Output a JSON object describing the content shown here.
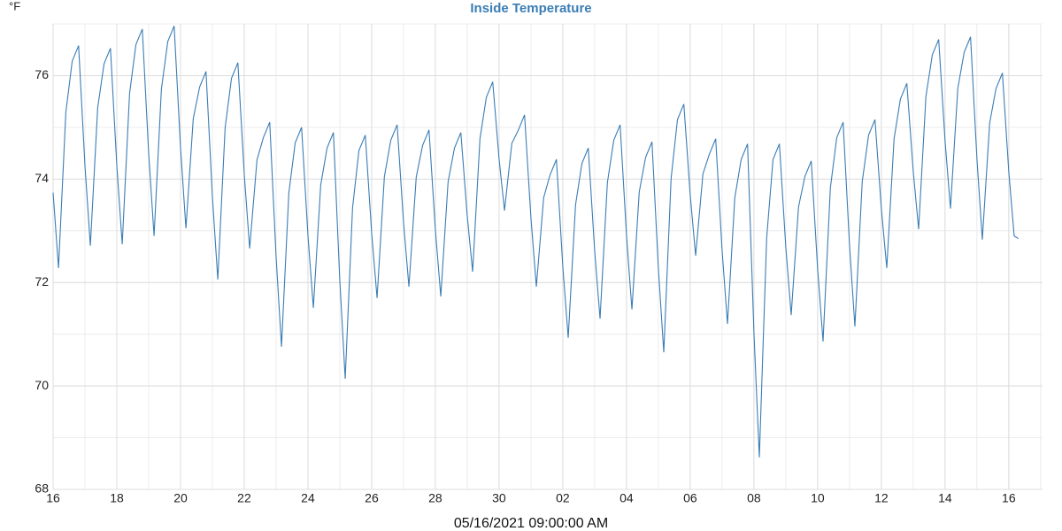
{
  "chart_data": {
    "type": "line",
    "title": "Inside Temperature",
    "y_axis_label": "°F",
    "x_axis_label": "05/16/2021 09:00:00 AM",
    "xlim": [
      0,
      31.06
    ],
    "xticks": [
      {
        "value": 0,
        "label": "16"
      },
      {
        "value": 2,
        "label": "18"
      },
      {
        "value": 4,
        "label": "20"
      },
      {
        "value": 6,
        "label": "22"
      },
      {
        "value": 8,
        "label": "24"
      },
      {
        "value": 10,
        "label": "26"
      },
      {
        "value": 12,
        "label": "28"
      },
      {
        "value": 14,
        "label": "30"
      },
      {
        "value": 16,
        "label": "02"
      },
      {
        "value": 18,
        "label": "04"
      },
      {
        "value": 20,
        "label": "06"
      },
      {
        "value": 22,
        "label": "08"
      },
      {
        "value": 24,
        "label": "10"
      },
      {
        "value": 26,
        "label": "12"
      },
      {
        "value": 28,
        "label": "14"
      },
      {
        "value": 30,
        "label": "16"
      }
    ],
    "ylim": [
      68,
      77
    ],
    "yticks": [
      68,
      70,
      72,
      74,
      76
    ],
    "grid": true,
    "x": [
      0,
      0.17,
      0.4,
      0.6,
      0.8,
      1,
      1.17,
      1.4,
      1.6,
      1.8,
      2,
      2.17,
      2.4,
      2.6,
      2.8,
      3,
      3.17,
      3.4,
      3.6,
      3.8,
      4,
      4.17,
      4.4,
      4.6,
      4.8,
      5,
      5.17,
      5.4,
      5.6,
      5.8,
      6,
      6.17,
      6.4,
      6.6,
      6.8,
      7,
      7.17,
      7.4,
      7.6,
      7.8,
      8,
      8.17,
      8.4,
      8.6,
      8.8,
      9,
      9.17,
      9.4,
      9.6,
      9.8,
      10,
      10.17,
      10.4,
      10.6,
      10.8,
      11,
      11.17,
      11.4,
      11.6,
      11.8,
      12,
      12.17,
      12.4,
      12.6,
      12.8,
      13,
      13.17,
      13.4,
      13.6,
      13.8,
      14,
      14.17,
      14.4,
      14.6,
      14.8,
      15,
      15.17,
      15.4,
      15.6,
      15.8,
      16,
      16.17,
      16.4,
      16.6,
      16.8,
      17,
      17.17,
      17.4,
      17.6,
      17.8,
      18,
      18.17,
      18.4,
      18.6,
      18.8,
      19,
      19.17,
      19.4,
      19.6,
      19.8,
      20,
      20.17,
      20.4,
      20.6,
      20.8,
      21,
      21.17,
      21.4,
      21.6,
      21.8,
      22,
      22.17,
      22.4,
      22.6,
      22.8,
      23,
      23.17,
      23.4,
      23.6,
      23.8,
      24,
      24.17,
      24.4,
      24.6,
      24.8,
      25,
      25.17,
      25.4,
      25.6,
      25.8,
      26,
      26.17,
      26.4,
      26.6,
      26.8,
      27,
      27.17,
      27.4,
      27.6,
      27.8,
      28,
      28.17,
      28.4,
      28.6,
      28.8,
      29,
      29.17,
      29.4,
      29.6,
      29.8,
      30,
      30.17,
      30.3
    ],
    "series": [
      {
        "name": "Inside Temperature",
        "color": "#3a7db5",
        "values": [
          73.74,
          72.28,
          75.29,
          76.28,
          76.58,
          74.26,
          72.71,
          75.38,
          76.23,
          76.53,
          74.26,
          72.74,
          75.65,
          76.6,
          76.9,
          74.5,
          72.9,
          75.74,
          76.66,
          76.96,
          74.61,
          73.05,
          75.17,
          75.78,
          76.08,
          73.67,
          72.06,
          74.99,
          75.95,
          76.25,
          74.1,
          72.66,
          74.37,
          74.8,
          75.1,
          72.5,
          70.76,
          73.73,
          74.7,
          75.0,
          72.91,
          71.51,
          73.88,
          74.6,
          74.9,
          72.04,
          70.14,
          73.44,
          74.55,
          74.85,
          72.96,
          71.7,
          74.05,
          74.75,
          75.05,
          73.17,
          71.92,
          74.04,
          74.65,
          74.95,
          73.02,
          71.73,
          73.95,
          74.6,
          74.9,
          73.29,
          72.21,
          74.78,
          75.58,
          75.88,
          74.39,
          73.39,
          74.69,
          74.94,
          75.24,
          73.25,
          71.92,
          73.64,
          74.08,
          74.38,
          72.31,
          70.93,
          73.5,
          74.3,
          74.6,
          72.62,
          71.3,
          73.93,
          74.75,
          75.05,
          72.91,
          71.48,
          73.75,
          74.42,
          74.72,
          72.28,
          70.65,
          74.01,
          75.15,
          75.45,
          73.69,
          72.52,
          74.1,
          74.48,
          74.78,
          72.63,
          71.2,
          73.64,
          74.38,
          74.68,
          71.04,
          68.62,
          72.86,
          74.38,
          74.68,
          72.69,
          71.37,
          73.46,
          74.05,
          74.35,
          72.26,
          70.86,
          73.83,
          74.8,
          75.1,
          72.73,
          71.15,
          73.95,
          74.85,
          75.15,
          73.43,
          72.28,
          74.78,
          75.55,
          75.85,
          74.16,
          73.03,
          75.6,
          76.4,
          76.7,
          74.74,
          73.43,
          75.75,
          76.45,
          76.75,
          74.4,
          72.83,
          75.08,
          75.75,
          76.05,
          74.15,
          72.9,
          72.85
        ]
      }
    ]
  }
}
